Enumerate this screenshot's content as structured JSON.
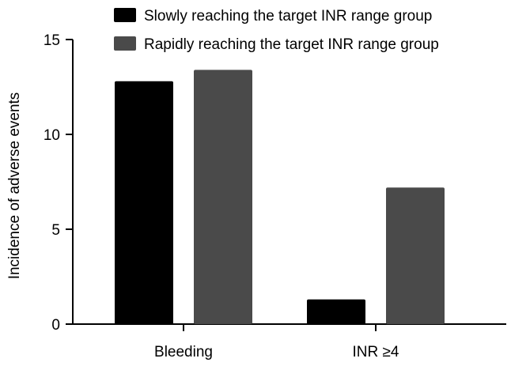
{
  "chart_data": {
    "type": "bar",
    "categories": [
      "Bleeding",
      "INR ≥4"
    ],
    "series": [
      {
        "name": "Slowly reaching the target INR range group",
        "color": "#000000",
        "values": [
          12.8,
          1.3
        ]
      },
      {
        "name": "Rapidly reaching the target INR range group",
        "color": "#4a4a4a",
        "values": [
          13.4,
          7.2
        ]
      }
    ],
    "ylabel": "Incidence of adverse events",
    "xlabel": "",
    "ylim": [
      0,
      15
    ],
    "yticks": [
      0,
      5,
      10,
      15
    ],
    "grid": false,
    "legend_position": "top"
  }
}
